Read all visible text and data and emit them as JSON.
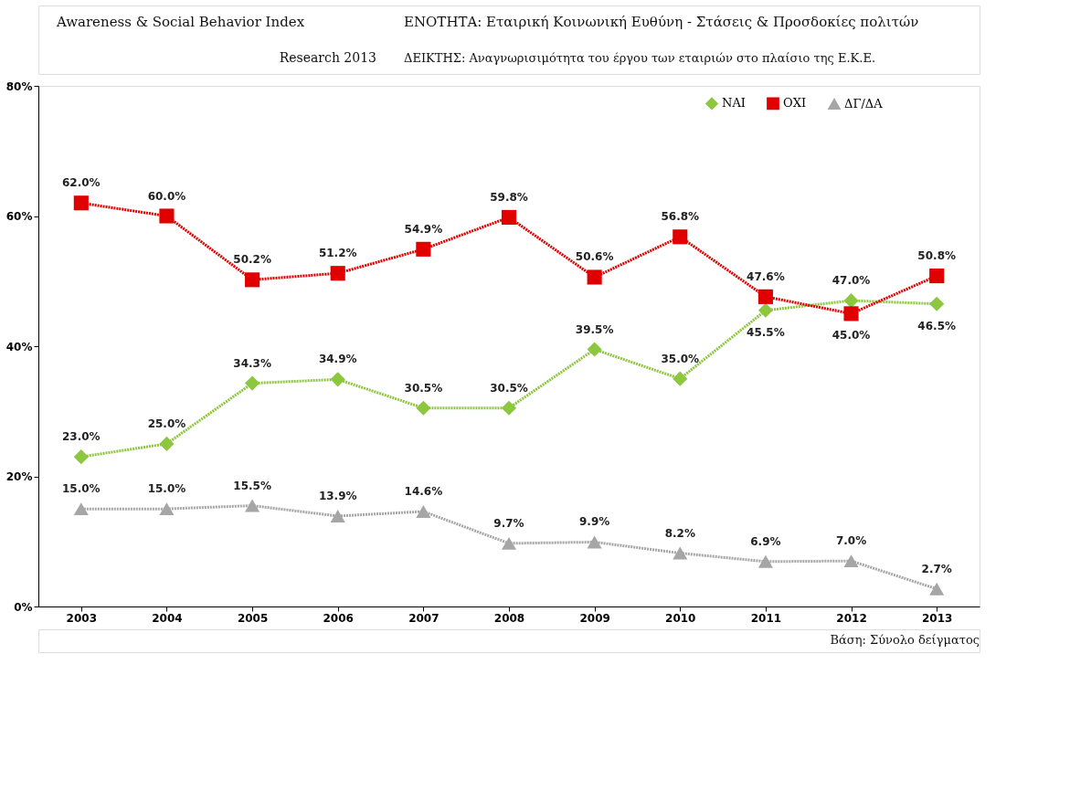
{
  "chart_data": {
    "type": "line",
    "title": "ΕΝΟΤΗΤΑ: Εταιρική Κοινωνική Ευθύνη - Στάσεις & Προσδοκίες πολιτών",
    "subtitle": "ΔΕΙΚΤΗΣ: Αναγνωρισιμότητα του έργου των εταιριών στο πλαίσιο της Ε.Κ.Ε.",
    "annotations": [
      "Awareness & Social Behavior Index",
      "Research 2013",
      "Βάση: Σύνολο δείγματος"
    ],
    "categories": [
      "2003",
      "2004",
      "2005",
      "2006",
      "2007",
      "2008",
      "2009",
      "2010",
      "2011",
      "2012",
      "2013"
    ],
    "series": [
      {
        "name": "ΝΑΙ",
        "color": "#8dc63f",
        "marker": "diamond",
        "values": [
          23.0,
          25.0,
          34.3,
          34.9,
          30.5,
          30.5,
          39.5,
          35.0,
          45.5,
          47.0,
          46.5
        ],
        "value_labels": [
          "23.0%",
          "25.0%",
          "34.3%",
          "34.9%",
          "30.5%",
          "30.5%",
          "39.5%",
          "35.0%",
          "45.5%",
          "47.0%",
          "46.5%"
        ]
      },
      {
        "name": "ΟΧΙ",
        "color": "#e00000",
        "marker": "square",
        "values": [
          62.0,
          60.0,
          50.2,
          51.2,
          54.9,
          59.8,
          50.6,
          56.8,
          47.6,
          45.0,
          50.8
        ],
        "value_labels": [
          "62.0%",
          "60.0%",
          "50.2%",
          "51.2%",
          "54.9%",
          "59.8%",
          "50.6%",
          "56.8%",
          "47.6%",
          "45.0%",
          "50.8%"
        ]
      },
      {
        "name": "ΔΓ/ΔΑ",
        "color": "#a6a6a6",
        "marker": "triangle",
        "values": [
          15.0,
          15.0,
          15.5,
          13.9,
          14.6,
          9.7,
          9.9,
          8.2,
          6.9,
          7.0,
          2.7
        ],
        "value_labels": [
          "15.0%",
          "15.0%",
          "15.5%",
          "13.9%",
          "14.6%",
          "9.7%",
          "9.9%",
          "8.2%",
          "6.9%",
          "7.0%",
          "2.7%"
        ]
      }
    ],
    "ylim": [
      0,
      80
    ],
    "yticks": [
      {
        "value": 0,
        "label": "0%"
      },
      {
        "value": 20,
        "label": "20%"
      },
      {
        "value": 40,
        "label": "40%"
      },
      {
        "value": 60,
        "label": "60%"
      },
      {
        "value": 80,
        "label": "80%"
      }
    ],
    "grid": false,
    "legend": "top right",
    "line_style": "dotted"
  }
}
